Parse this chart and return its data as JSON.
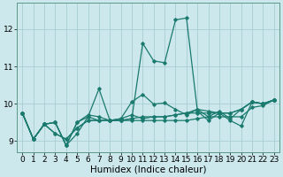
{
  "title": "",
  "xlabel": "Humidex (Indice chaleur)",
  "xlim": [
    -0.5,
    23.5
  ],
  "ylim": [
    8.7,
    12.7
  ],
  "bg_color": "#cce8ec",
  "line_color": "#1a7a6e",
  "grid_color": "#a8cdd2",
  "series": [
    {
      "x": [
        0,
        1,
        2,
        3,
        4,
        5,
        6,
        7,
        8,
        9,
        10,
        11,
        12,
        13,
        14,
        15,
        16,
        17,
        18,
        19,
        20,
        21,
        22,
        23
      ],
      "y": [
        9.75,
        9.05,
        9.45,
        9.5,
        8.88,
        9.2,
        9.65,
        10.4,
        9.55,
        9.55,
        9.6,
        11.62,
        11.15,
        11.1,
        12.25,
        12.3,
        9.8,
        9.55,
        9.75,
        9.55,
        9.4,
        10.05,
        10.0,
        10.1
      ]
    },
    {
      "x": [
        0,
        1,
        2,
        3,
        4,
        5,
        6,
        7,
        8,
        9,
        10,
        11,
        12,
        13,
        14,
        15,
        16,
        17,
        18,
        19,
        20,
        21,
        22,
        23
      ],
      "y": [
        9.75,
        9.05,
        9.45,
        9.2,
        9.05,
        9.35,
        9.55,
        9.55,
        9.55,
        9.55,
        9.6,
        9.65,
        9.65,
        9.65,
        9.7,
        9.75,
        9.85,
        9.8,
        9.75,
        9.75,
        9.85,
        10.05,
        10.0,
        10.1
      ]
    },
    {
      "x": [
        0,
        1,
        2,
        3,
        4,
        5,
        6,
        7,
        8,
        9,
        10,
        11,
        12,
        13,
        14,
        15,
        16,
        17,
        18,
        19,
        20,
        21,
        22,
        23
      ],
      "y": [
        9.75,
        9.05,
        9.45,
        9.2,
        9.05,
        9.35,
        9.55,
        9.55,
        9.55,
        9.55,
        9.55,
        9.55,
        9.55,
        9.55,
        9.55,
        9.55,
        9.6,
        9.65,
        9.65,
        9.65,
        9.65,
        9.9,
        9.95,
        10.1
      ]
    },
    {
      "x": [
        0,
        1,
        2,
        3,
        4,
        5,
        6,
        7,
        8,
        9,
        10,
        11,
        12,
        13,
        14,
        15,
        16,
        17,
        18,
        19,
        20,
        21,
        22,
        23
      ],
      "y": [
        9.75,
        9.05,
        9.45,
        9.5,
        8.88,
        9.5,
        9.7,
        9.65,
        9.55,
        9.6,
        10.05,
        10.25,
        9.99,
        10.02,
        9.85,
        9.7,
        9.85,
        9.65,
        9.8,
        9.6,
        9.85,
        10.05,
        10.0,
        10.1
      ]
    },
    {
      "x": [
        0,
        1,
        2,
        3,
        4,
        5,
        6,
        7,
        8,
        9,
        10,
        11,
        12,
        13,
        14,
        15,
        16,
        17,
        18,
        19,
        20,
        21,
        22,
        23
      ],
      "y": [
        9.75,
        9.05,
        9.45,
        9.5,
        8.88,
        9.5,
        9.65,
        9.55,
        9.55,
        9.6,
        9.7,
        9.6,
        9.65,
        9.65,
        9.7,
        9.75,
        9.75,
        9.75,
        9.75,
        9.75,
        9.85,
        10.05,
        10.0,
        10.1
      ]
    }
  ],
  "xticks": [
    0,
    1,
    2,
    3,
    4,
    5,
    6,
    7,
    8,
    9,
    10,
    11,
    12,
    13,
    14,
    15,
    16,
    17,
    18,
    19,
    20,
    21,
    22,
    23
  ],
  "yticks": [
    9,
    10,
    11,
    12
  ],
  "tick_fontsize": 6.5,
  "label_fontsize": 7.5
}
